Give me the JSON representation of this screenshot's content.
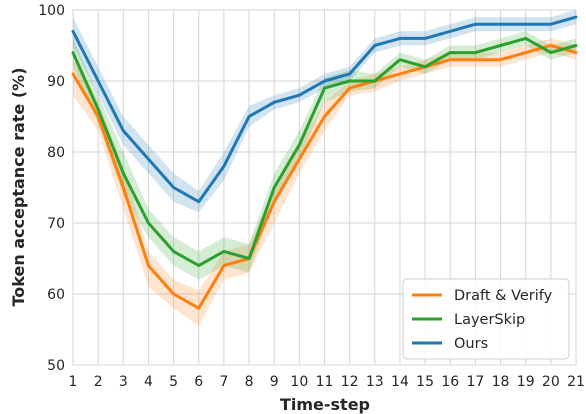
{
  "chart_data": {
    "type": "line",
    "title": "",
    "xlabel": "Time-step",
    "ylabel": "Token acceptance rate (%)",
    "x": [
      1,
      2,
      3,
      4,
      5,
      6,
      7,
      8,
      9,
      10,
      11,
      12,
      13,
      14,
      15,
      16,
      17,
      18,
      19,
      20,
      21
    ],
    "xlim": [
      1,
      21
    ],
    "ylim": [
      50,
      100
    ],
    "yticks": [
      50,
      60,
      70,
      80,
      90,
      100
    ],
    "grid": true,
    "legend_position": "bottom-right",
    "series": [
      {
        "name": "Draft & Verify",
        "color": "#ff7f0e",
        "values": [
          91,
          85,
          75,
          64,
          60,
          58,
          64,
          65,
          73,
          79,
          85,
          89,
          90,
          91,
          92,
          93,
          93,
          93,
          94,
          95,
          94
        ],
        "lower": [
          88,
          83,
          72,
          61,
          58,
          55.5,
          62,
          63,
          70,
          77,
          83,
          88,
          88.5,
          90,
          91,
          92,
          92,
          92,
          93,
          94,
          93
        ],
        "upper": [
          93,
          87,
          78,
          66,
          62,
          60.5,
          66,
          67,
          75,
          81,
          87,
          90,
          91,
          92,
          93,
          94,
          94,
          94,
          95,
          96,
          95
        ]
      },
      {
        "name": "LayerSkip",
        "color": "#2ca02c",
        "values": [
          94,
          86,
          77,
          70,
          66,
          64,
          66,
          65,
          75,
          81,
          89,
          90,
          90,
          93,
          92,
          94,
          94,
          95,
          96,
          94,
          95
        ],
        "lower": [
          92,
          84,
          74,
          68,
          64,
          62,
          64,
          63,
          73,
          79,
          87,
          88.5,
          89,
          92,
          91,
          93,
          93,
          94,
          95,
          93,
          94
        ],
        "upper": [
          96,
          88,
          80,
          72,
          68,
          66,
          68,
          67,
          77,
          83,
          90.5,
          91.5,
          91,
          94,
          93,
          95,
          95,
          96,
          97,
          95,
          96
        ]
      },
      {
        "name": "Ours",
        "color": "#1f77b4",
        "values": [
          97,
          90,
          83,
          79,
          75,
          73,
          78,
          85,
          87,
          88,
          90,
          91,
          95,
          96,
          96,
          97,
          98,
          98,
          98,
          98,
          99
        ],
        "lower": [
          95,
          88,
          81,
          77,
          73,
          71.5,
          76,
          83.5,
          86,
          87,
          89,
          90,
          94,
          95,
          95,
          96,
          97,
          97,
          97,
          97,
          98
        ],
        "upper": [
          99,
          92,
          85,
          81,
          77,
          74.5,
          80,
          86.5,
          88,
          89,
          91,
          92,
          96,
          97,
          97,
          98,
          99,
          99,
          99,
          99,
          100
        ]
      }
    ]
  }
}
